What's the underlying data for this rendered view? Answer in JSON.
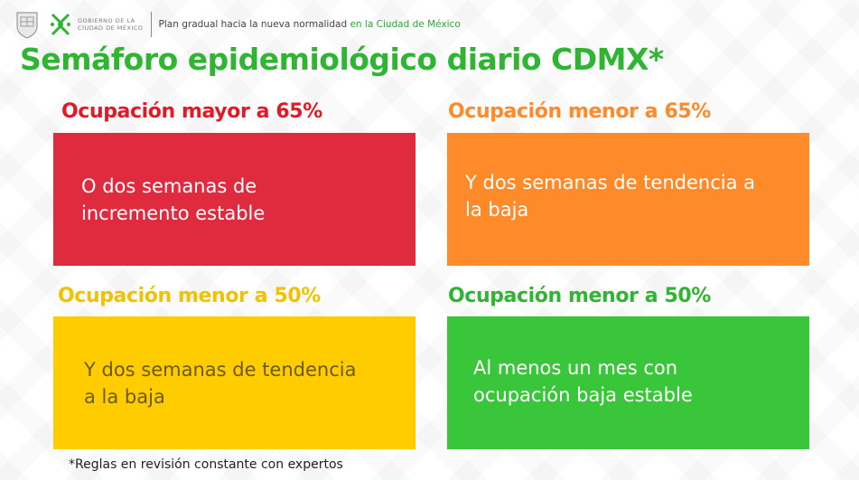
{
  "header": {
    "gov_line1": "GOBIERNO DE LA",
    "gov_line2": "CIUDAD DE MÉXICO",
    "plan_text": "Plan gradual hacia la nueva normalidad",
    "plan_location": "en la Ciudad de México"
  },
  "title": "Semáforo epidemiológico diario CDMX*",
  "quadrants": [
    {
      "label": "Ocupación mayor a 65%",
      "text": "O dos semanas de\nincremento estable",
      "color": "#e02a3e",
      "label_color": "#e11a28",
      "text_color": "#ffffff"
    },
    {
      "label": "Ocupación menor a 65%",
      "text": "Y dos semanas de tendencia a\nla baja",
      "color": "#ff8a2a",
      "label_color": "#ff8a2a",
      "text_color": "#ffffff"
    },
    {
      "label": "Ocupación menor a 50%",
      "text": "Y dos semanas de tendencia\na la baja",
      "color": "#ffcc00",
      "label_color": "#f2c200",
      "text_color": "#6b5a12"
    },
    {
      "label": "Ocupación menor a 50%",
      "text": "Al menos un mes con\nocupación baja estable",
      "color": "#3ac63a",
      "label_color": "#2fb531",
      "text_color": "#ffffff"
    }
  ],
  "footnote": "*Reglas en revisión constante con expertos"
}
